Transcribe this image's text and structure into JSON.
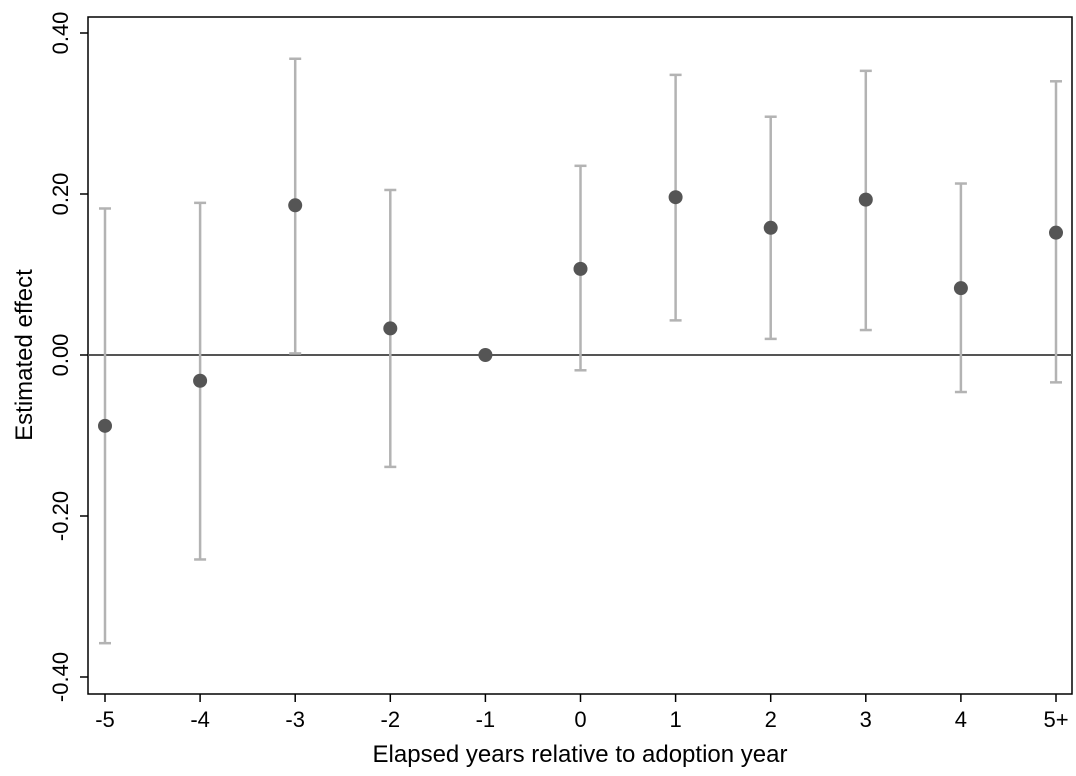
{
  "chart_data": {
    "type": "scatter",
    "title": "",
    "xlabel": "Elapsed years relative to adoption year",
    "ylabel": "Estimated effect",
    "categories": [
      "-5",
      "-4",
      "-3",
      "-2",
      "-1",
      "0",
      "1",
      "2",
      "3",
      "4",
      "5+"
    ],
    "series": [
      {
        "values": [
          -0.088,
          -0.032,
          0.186,
          0.033,
          0.0,
          0.107,
          0.196,
          0.158,
          0.193,
          0.083,
          0.152
        ],
        "ci_lower": [
          -0.358,
          -0.254,
          0.002,
          -0.139,
          0.0,
          -0.019,
          0.043,
          0.02,
          0.031,
          -0.046,
          -0.034
        ],
        "ci_upper": [
          0.182,
          0.189,
          0.368,
          0.205,
          0.0,
          0.235,
          0.348,
          0.296,
          0.353,
          0.213,
          0.34
        ]
      }
    ],
    "ylim": [
      -0.42,
      0.42
    ],
    "yticks": [
      -0.4,
      -0.2,
      0.0,
      0.2,
      0.4
    ],
    "ytick_labels": [
      "-0.40",
      "-0.20",
      "0.00",
      "0.20",
      "0.40"
    ],
    "reference_line_y": 0.0,
    "grid": false,
    "legend": "none",
    "colors": {
      "point": "#555555",
      "error_bar": "#b3b3b3",
      "reference_line": "#555555",
      "axis": "#000000",
      "background": "#ffffff"
    }
  }
}
